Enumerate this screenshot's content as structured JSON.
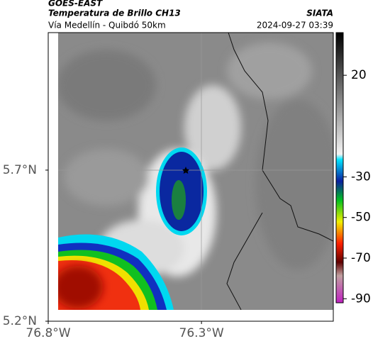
{
  "header": {
    "title": "GOES-EAST",
    "subtitle": "Temperatura de Brillo CH13",
    "location": "Vía Medellín - Quibdó 50km",
    "source": "SIATA",
    "datetime": "2024-09-27 03:39"
  },
  "map": {
    "xlim": [
      -76.8,
      -75.87
    ],
    "ylim": [
      5.2,
      6.155
    ],
    "xticks": [
      {
        "value": -76.8,
        "label": "76.8°W"
      },
      {
        "value": -76.3,
        "label": "76.3°W"
      }
    ],
    "yticks": [
      {
        "value": 5.2,
        "label": "5.2°N"
      },
      {
        "value": 5.7,
        "label": "5.7°N"
      }
    ]
  },
  "colorbar": {
    "clim": [
      -92,
      41
    ],
    "ticks": [
      20,
      -30,
      -50,
      -70,
      -90
    ]
  }
}
